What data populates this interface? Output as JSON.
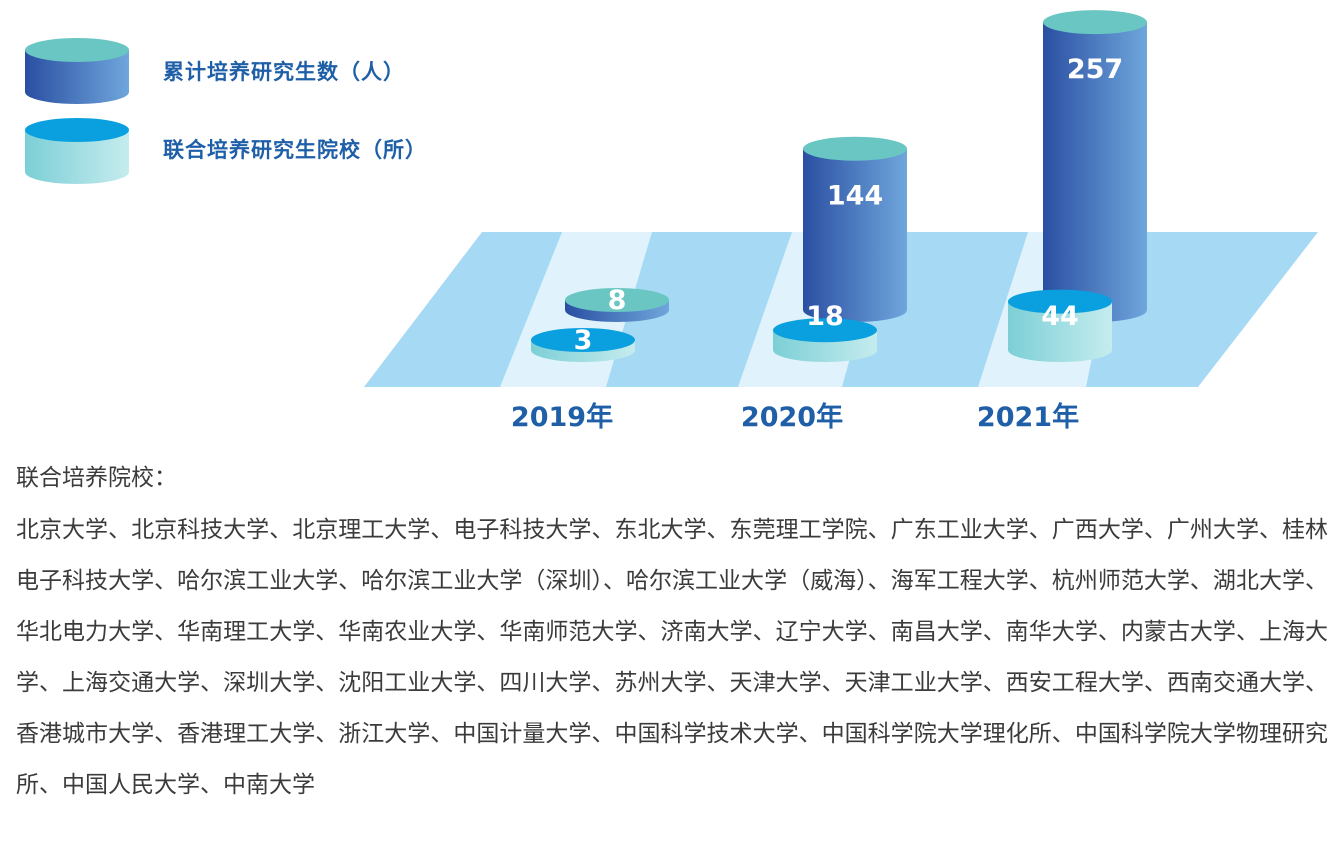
{
  "chart_data": {
    "type": "bar",
    "style": "3d-cylinder",
    "categories": [
      "2019年",
      "2020年",
      "2021年"
    ],
    "series": [
      {
        "name": "累计培养研究生数（人）",
        "values": [
          8,
          144,
          257
        ],
        "colors": {
          "top": "#69c6c2",
          "body_dark": "#2a4fa2",
          "body_light": "#6fa6dc"
        }
      },
      {
        "name": "联合培养研究生院校（所）",
        "values": [
          3,
          18,
          44
        ],
        "colors": {
          "top": "#0aa0df",
          "body_dark": "#7ccfd6",
          "body_light": "#c5ecee"
        }
      }
    ],
    "xlabel": "",
    "ylabel": "",
    "legend_position": "top-left",
    "floor_color": "#a6d9f4"
  },
  "notes": {
    "title": "联合培养院校：",
    "body": "北京大学、北京科技大学、北京理工大学、电子科技大学、东北大学、东莞理工学院、广东工业大学、广西大学、广州大学、桂林电子科技大学、哈尔滨工业大学、哈尔滨工业大学（深圳）、哈尔滨工业大学（威海）、海军工程大学、杭州师范大学、湖北大学、华北电力大学、华南理工大学、华南农业大学、华南师范大学、济南大学、辽宁大学、南昌大学、南华大学、内蒙古大学、上海大学、上海交通大学、深圳大学、沈阳工业大学、四川大学、苏州大学、天津大学、天津工业大学、西安工程大学、西南交通大学、香港城市大学、香港理工大学、浙江大学、中国计量大学、中国科学技术大学、中国科学院大学理化所、中国科学院大学物理研究所、中国人民大学、中南大学"
  }
}
